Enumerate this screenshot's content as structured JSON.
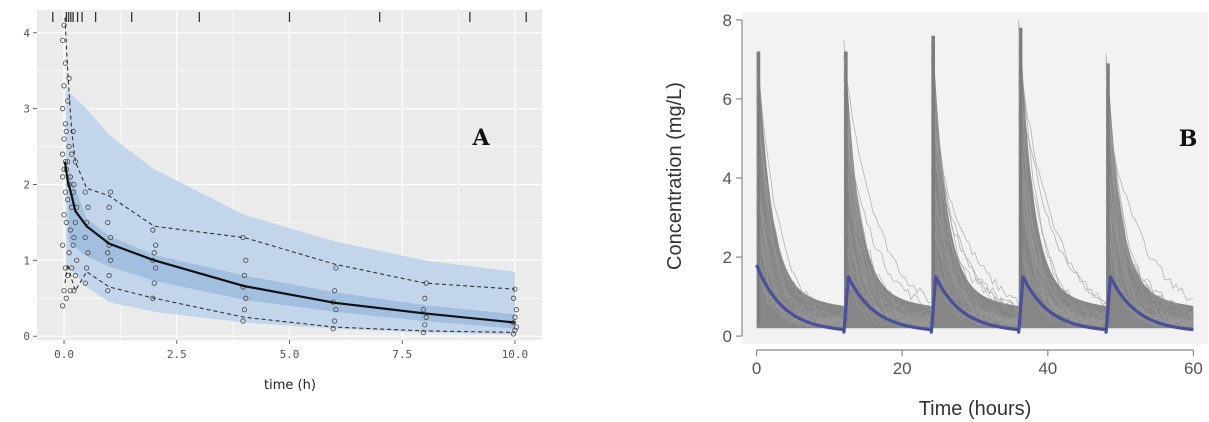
{
  "chart_data": [
    {
      "panel_label": "A",
      "type": "line",
      "xlabel": "time (h)",
      "ylabel": "",
      "xlim": [
        -0.6,
        10.6
      ],
      "ylim": [
        -0.05,
        4.3
      ],
      "x_ticks": [
        0.0,
        2.5,
        5.0,
        7.5,
        10.0
      ],
      "x_tick_labels": [
        "0.0",
        "2.5",
        "5.0",
        "7.5",
        "10.0"
      ],
      "y_ticks": [
        0,
        1,
        2,
        3,
        4
      ],
      "y_tick_labels": [
        "0",
        "1",
        "2",
        "3",
        "4"
      ],
      "rug_x": [
        -0.25,
        0.05,
        0.1,
        0.15,
        0.2,
        0.3,
        0.4,
        0.7,
        1.5,
        3.0,
        5.0,
        7.0,
        9.0,
        10.25
      ],
      "grid": true,
      "outer_band": {
        "x": [
          0.05,
          0.5,
          1,
          2,
          4,
          6,
          8,
          10
        ],
        "upper": [
          3.25,
          3.0,
          2.65,
          2.2,
          1.6,
          1.25,
          1.0,
          0.85
        ],
        "lower": [
          0.95,
          0.65,
          0.45,
          0.32,
          0.18,
          0.1,
          0.05,
          0.02
        ]
      },
      "inner_band": {
        "x": [
          0.1,
          0.5,
          1,
          2,
          4,
          6,
          8,
          10
        ],
        "upper": [
          2.2,
          1.55,
          1.32,
          1.07,
          0.8,
          0.58,
          0.41,
          0.29
        ],
        "lower": [
          1.25,
          1.05,
          0.92,
          0.73,
          0.48,
          0.32,
          0.2,
          0.1
        ]
      },
      "median": {
        "x": [
          0.02,
          0.08,
          0.17,
          0.25,
          0.5,
          1,
          2,
          4,
          6,
          8,
          10
        ],
        "y": [
          2.3,
          2.05,
          1.85,
          1.65,
          1.45,
          1.22,
          1.0,
          0.66,
          0.44,
          0.3,
          0.18
        ]
      },
      "dashed_upper": {
        "x": [
          0.02,
          0.08,
          0.17,
          0.25,
          0.5,
          1,
          2,
          4,
          6,
          8,
          10
        ],
        "y": [
          4.2,
          3.5,
          2.7,
          2.3,
          1.95,
          1.85,
          1.45,
          1.3,
          0.95,
          0.7,
          0.62
        ]
      },
      "dashed_lower": {
        "x": [
          0.02,
          0.08,
          0.17,
          0.25,
          0.5,
          1,
          2,
          4,
          6,
          8,
          10
        ],
        "y": [
          0.7,
          0.95,
          0.75,
          0.6,
          0.85,
          0.65,
          0.5,
          0.25,
          0.12,
          0.07,
          0.05
        ]
      },
      "observations": [
        {
          "x": 0.0,
          "y": [
            0.4,
            0.6,
            0.9,
            1.2,
            1.6,
            1.9,
            2.1,
            2.2,
            2.3,
            2.4,
            2.6,
            2.8,
            3.0,
            3.3,
            3.6,
            3.9,
            4.1
          ]
        },
        {
          "x": 0.08,
          "y": [
            0.5,
            0.8,
            1.1,
            1.5,
            1.8,
            2.0,
            2.2,
            2.3,
            2.5,
            2.7,
            3.1,
            3.4
          ]
        },
        {
          "x": 0.17,
          "y": [
            0.6,
            0.9,
            1.2,
            1.4,
            1.7,
            1.9,
            2.1,
            2.4,
            2.7
          ]
        },
        {
          "x": 0.25,
          "y": [
            0.6,
            0.8,
            1.0,
            1.3,
            1.5,
            1.7,
            2.0,
            2.3
          ]
        },
        {
          "x": 0.5,
          "y": [
            0.7,
            0.9,
            1.1,
            1.3,
            1.5,
            1.7,
            1.9
          ]
        },
        {
          "x": 1.0,
          "y": [
            0.6,
            0.8,
            1.0,
            1.1,
            1.2,
            1.3,
            1.5,
            1.7,
            1.9
          ]
        },
        {
          "x": 2.0,
          "y": [
            0.5,
            0.7,
            0.9,
            1.0,
            1.1,
            1.2,
            1.4
          ]
        },
        {
          "x": 4.0,
          "y": [
            0.2,
            0.35,
            0.5,
            0.65,
            0.8,
            1.0,
            1.3
          ]
        },
        {
          "x": 6.0,
          "y": [
            0.1,
            0.2,
            0.35,
            0.45,
            0.6,
            0.9
          ]
        },
        {
          "x": 8.0,
          "y": [
            0.05,
            0.15,
            0.25,
            0.35,
            0.5,
            0.7
          ]
        },
        {
          "x": 10.0,
          "y": [
            0.03,
            0.08,
            0.12,
            0.18,
            0.25,
            0.35,
            0.5,
            0.62
          ]
        }
      ],
      "colors": {
        "panel_bg": "#ebebeb",
        "grid": "#ffffff",
        "outer_band": "#c2d5ea",
        "inner_band": "#a3bfdf",
        "median": "#111111",
        "dashed": "#333333",
        "points": "#444444"
      }
    },
    {
      "panel_label": "B",
      "type": "line",
      "xlabel": "Time (hours)",
      "ylabel": "Concentration (mg/L)",
      "xlim": [
        -2,
        62
      ],
      "ylim": [
        -0.2,
        8.2
      ],
      "x_ticks": [
        0,
        20,
        40,
        60
      ],
      "x_tick_labels": [
        "0",
        "20",
        "40",
        "60"
      ],
      "y_ticks": [
        0,
        2,
        4,
        6,
        8
      ],
      "y_tick_labels": [
        "0",
        "2",
        "4",
        "6",
        "8"
      ],
      "dose_times": [
        0,
        12,
        24,
        36,
        48
      ],
      "dose_interval": 12,
      "simulation_peaks": [
        7.2,
        7.2,
        7.6,
        7.8,
        6.9
      ],
      "simulation_trough": 0.3,
      "simulation_tail_max": 1.5,
      "mean_profile": {
        "peak": 1.8,
        "repeat_peak": 1.5,
        "trough": 0.1
      },
      "colors": {
        "panel_bg": "#f2f2f2",
        "simulations": "#7d7d7d",
        "mean": "#4a4f9a",
        "axis": "#888888"
      }
    }
  ]
}
